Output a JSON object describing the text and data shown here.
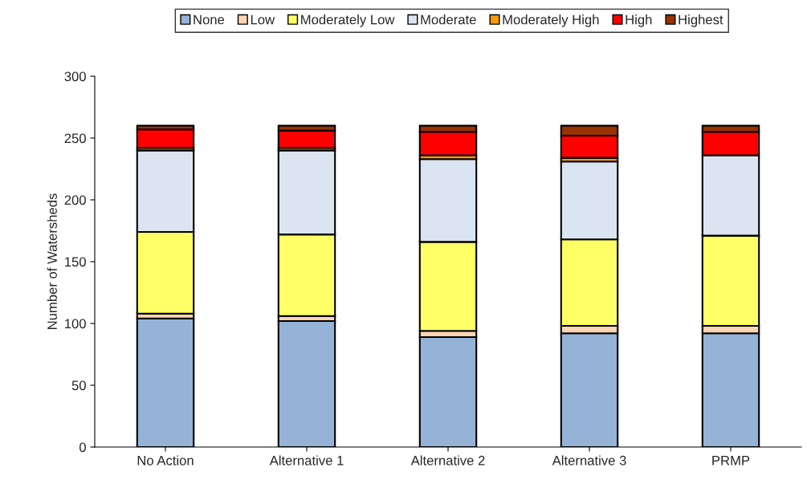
{
  "chart_data": {
    "type": "bar",
    "stacked": true,
    "ylabel": "Number of Watersheds",
    "categories": [
      "No Action",
      "Alternative 1",
      "Alternative 2",
      "Alternative 3",
      "PRMP"
    ],
    "series": [
      {
        "name": "None",
        "color": "#95b3d7",
        "values": [
          104,
          102,
          89,
          92,
          92
        ]
      },
      {
        "name": "Low",
        "color": "#fcd5b4",
        "values": [
          4,
          4,
          5,
          6,
          6
        ]
      },
      {
        "name": "Moderately Low",
        "color": "#ffff66",
        "values": [
          66,
          66,
          72,
          70,
          73
        ]
      },
      {
        "name": "Moderate",
        "color": "#dbe5f1",
        "values": [
          66,
          68,
          67,
          63,
          65
        ]
      },
      {
        "name": "Moderately High",
        "color": "#ff9900",
        "values": [
          2,
          2,
          3,
          3,
          null
        ]
      },
      {
        "name": "High",
        "color": "#ff0000",
        "values": [
          15,
          14,
          19,
          18,
          19
        ]
      },
      {
        "name": "Highest",
        "color": "#993300",
        "values": [
          3,
          4,
          5,
          8,
          5
        ]
      }
    ],
    "ylim": [
      0,
      300
    ],
    "yticks": [
      0,
      50,
      100,
      150,
      200,
      250,
      300
    ],
    "grid": false,
    "legend": "top"
  }
}
